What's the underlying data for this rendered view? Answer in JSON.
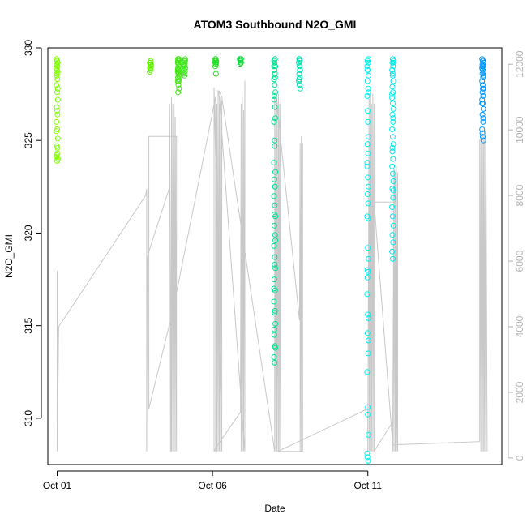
{
  "chart_data": {
    "type": "scatter",
    "title": "ATOM3 Southbound N2O_GMI",
    "xlabel": "Date",
    "ylabel": "N2O_GMI",
    "x_ticks": [
      {
        "day": 1,
        "label": "Oct 01"
      },
      {
        "day": 6,
        "label": "Oct 06"
      },
      {
        "day": 11,
        "label": "Oct 11"
      }
    ],
    "xlim": [
      "Sep 30 16:50",
      "Oct 15 07:30"
    ],
    "ylim": [
      307.5,
      330
    ],
    "y_ticks": [
      310,
      315,
      320,
      325,
      330
    ],
    "y2_ticks": [
      0,
      2000,
      4000,
      6000,
      8000,
      10000,
      12000
    ],
    "y2lim": [
      -200,
      12500
    ],
    "grid": false,
    "legend": "none",
    "colors": {
      "altitude_line": "#c8c8c8",
      "right_axis": "#b3b3b3",
      "scatter_start": "#80ff00",
      "scatter_end": "#0099ff"
    },
    "scatter_series": [
      {
        "day": 1.0,
        "color": "#80ff00",
        "values": [
          329.4,
          329.3,
          329.2,
          329.1,
          329.0,
          328.9,
          328.8,
          328.7,
          328.5,
          328.3,
          328.0,
          327.6,
          327.2,
          326.8,
          326.4,
          326.0,
          325.6,
          325.1,
          324.7,
          324.3,
          324.1,
          323.9,
          324.0,
          324.2,
          324.6,
          325.5,
          326.6,
          327.8,
          328.6,
          329.2
        ]
      },
      {
        "day": 4.0,
        "color": "#60f000",
        "values": [
          329.3,
          329.2,
          329.1,
          329.0,
          328.9,
          328.8,
          328.7,
          328.9,
          329.1,
          329.2
        ]
      },
      {
        "day": 4.9,
        "color": "#40e810",
        "values": [
          329.4,
          329.3,
          329.2,
          329.1,
          329.0,
          328.9,
          328.8,
          328.7,
          328.6,
          328.5,
          328.4,
          328.3,
          328.2,
          328.0,
          327.8,
          327.6,
          328.2,
          328.8,
          329.2,
          329.4,
          329.3,
          328.7
        ]
      },
      {
        "day": 5.1,
        "color": "#38e818",
        "values": [
          329.4,
          329.3,
          329.2,
          329.1,
          329.0,
          328.9,
          328.8,
          328.7,
          328.6,
          328.5,
          329.3,
          329.1
        ]
      },
      {
        "day": 6.1,
        "color": "#20e020",
        "values": [
          329.4,
          329.3,
          329.2,
          329.1,
          329.3,
          329.4,
          329.2,
          329.0,
          328.6
        ]
      },
      {
        "day": 6.9,
        "color": "#10e040",
        "values": [
          329.4,
          329.3,
          329.2,
          329.1,
          329.3,
          329.4,
          329.2,
          329.4,
          329.3
        ]
      },
      {
        "day": 8.0,
        "color": "#00e090",
        "values": [
          329.4,
          329.3,
          329.2,
          329.0,
          328.8,
          328.6,
          328.3,
          328.0,
          327.6,
          327.2,
          326.8,
          326.0,
          324.7,
          323.3,
          322.9,
          322.5,
          322.0,
          321.5,
          320.9,
          320.4,
          319.9,
          319.3,
          318.7,
          318.1,
          317.5,
          316.9,
          316.3,
          315.7,
          315.1,
          314.5,
          313.9,
          313.3,
          313.0,
          313.8,
          314.8,
          315.8,
          317.0,
          318.3,
          319.6,
          321.0,
          322.5,
          323.8,
          325.0,
          326.2,
          327.4,
          328.4,
          329.0
        ]
      },
      {
        "day": 8.8,
        "color": "#00e0b0",
        "values": [
          329.4,
          329.3,
          329.2,
          329.0,
          328.8,
          328.6,
          328.4,
          328.2,
          328.0,
          327.8,
          328.3,
          328.8,
          329.2,
          329.4
        ]
      },
      {
        "day": 11.0,
        "color": "#00f0f0",
        "values": [
          329.4,
          329.3,
          329.2,
          329.0,
          328.8,
          328.5,
          328.2,
          327.8,
          327.4,
          326.6,
          325.2,
          324.8,
          324.3,
          323.6,
          323.0,
          322.5,
          322.1,
          321.6,
          320.9,
          319.2,
          318.6,
          318.0,
          317.9,
          316.7,
          315.6,
          315.4,
          314.6,
          313.5,
          312.5,
          310.6,
          309.1,
          307.9,
          307.7,
          308.1,
          310.2,
          314.2,
          317.6,
          320.8,
          323.8,
          326.0,
          327.6,
          328.8
        ]
      },
      {
        "day": 11.8,
        "color": "#00e8f0",
        "values": [
          329.4,
          329.3,
          329.2,
          329.0,
          328.8,
          328.5,
          328.2,
          327.9,
          327.6,
          327.3,
          327.0,
          326.7,
          326.4,
          326.0,
          325.6,
          325.2,
          324.8,
          324.4,
          324.0,
          323.6,
          323.2,
          322.8,
          322.4,
          321.9,
          321.4,
          320.9,
          320.4,
          319.9,
          319.5,
          319.0,
          318.6,
          322.3,
          324.6,
          326.2,
          327.5,
          328.6,
          329.2
        ]
      },
      {
        "day": 14.7,
        "color": "#0099ff",
        "values": [
          329.4,
          329.3,
          329.2,
          329.1,
          329.0,
          328.9,
          328.8,
          328.7,
          328.6,
          328.4,
          328.2,
          328.0,
          327.8,
          327.6,
          327.4,
          327.2,
          327.0,
          326.7,
          326.4,
          326.0,
          325.6,
          325.2,
          325.0,
          325.4,
          326.2,
          327.0,
          327.8,
          328.5,
          329.0,
          329.3
        ]
      }
    ],
    "altitude_line": {
      "days": [
        1.0,
        1.0,
        1.0,
        1.0,
        1.0,
        1.0,
        1.05,
        3.85,
        3.88,
        3.88,
        3.9,
        3.92,
        4.6,
        4.62,
        4.65,
        4.62,
        4.68,
        4.68,
        4.72,
        4.72,
        4.76,
        4.76,
        4.8,
        4.8,
        4.84,
        4.84,
        3.95,
        3.95,
        4.75,
        6.1,
        6.1,
        6.14,
        6.14,
        6.18,
        6.18,
        6.22,
        6.22,
        6.26,
        6.26,
        6.3,
        6.3,
        6.05,
        6.05,
        6.1,
        6.9,
        6.92,
        6.92,
        6.96,
        6.96,
        7.0,
        7.0,
        7.04,
        7.04,
        6.2,
        6.3,
        8.0,
        8.0,
        8.04,
        8.04,
        8.08,
        8.08,
        8.12,
        8.12,
        8.16,
        8.16,
        8.2,
        8.2,
        8.05,
        8.05,
        8.8,
        8.82,
        8.82,
        8.86,
        8.86,
        8.9,
        8.9,
        8.1,
        11.0,
        11.0,
        11.04,
        11.04,
        11.08,
        11.08,
        11.12,
        11.12,
        11.16,
        11.16,
        11.2,
        11.2,
        11.8,
        11.8,
        11.84,
        11.84,
        11.88,
        11.88,
        11.92,
        11.92,
        11.96,
        11.96,
        11.86,
        11.86,
        11.2,
        11.8,
        14.6,
        14.6,
        14.64,
        14.64,
        14.68,
        14.68,
        14.72,
        14.72,
        14.76,
        14.76,
        14.8,
        14.8,
        14.84
      ],
      "alt": [
        5700,
        4800,
        400,
        5600,
        3800,
        200,
        4000,
        8000,
        8200,
        200,
        6000,
        6200,
        8200,
        10800,
        200,
        10800,
        200,
        11000,
        200,
        10800,
        200,
        11000,
        200,
        10400,
        200,
        9800,
        9800,
        1500,
        4600,
        11000,
        200,
        10800,
        200,
        11200,
        200,
        10800,
        200,
        11000,
        200,
        10900,
        200,
        11300,
        200,
        300,
        1400,
        10800,
        200,
        11000,
        200,
        10600,
        200,
        11500,
        200,
        11200,
        11000,
        200,
        11000,
        200,
        11200,
        200,
        10900,
        200,
        11100,
        200,
        10800,
        200,
        11000,
        200,
        11000,
        4200,
        9600,
        200,
        9800,
        200,
        9600,
        200,
        200,
        1500,
        200,
        11000,
        200,
        11200,
        200,
        10800,
        200,
        11100,
        200,
        10800,
        200,
        1100,
        200,
        8800,
        200,
        8600,
        200,
        8900,
        200,
        8700,
        200,
        8800,
        7800,
        7800,
        400,
        500,
        9700,
        200,
        9900,
        200,
        10000,
        200,
        9800,
        200,
        10000,
        200,
        9800,
        200,
        5400
      ]
    }
  }
}
